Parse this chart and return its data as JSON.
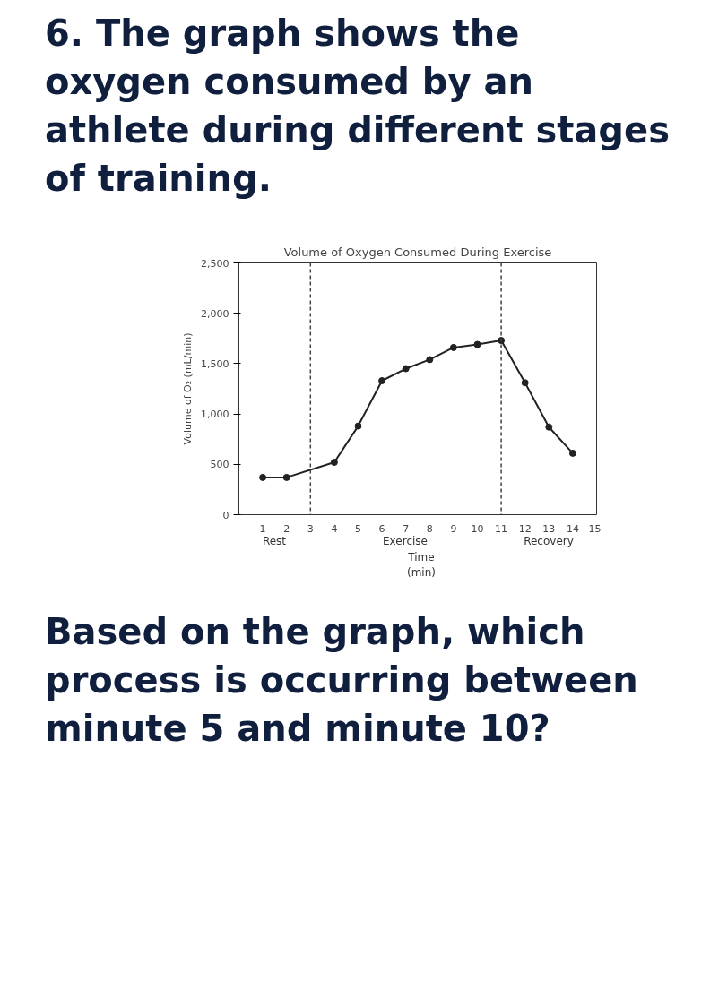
{
  "chart_data": {
    "type": "line",
    "title": "Volume of Oxygen Consumed During Exercise",
    "xlabel": "Time\n(min)",
    "ylabel": "Volume of O₂ (mL/min)",
    "x": [
      1,
      2,
      4,
      5,
      6,
      7,
      8,
      9,
      10,
      11,
      12,
      13,
      14
    ],
    "series": [
      {
        "color": "#222222",
        "values": [
          370,
          370,
          520,
          880,
          1330,
          1450,
          1540,
          1660,
          1690,
          1730,
          1310,
          870,
          610
        ]
      }
    ],
    "xlim": [
      0,
      15
    ],
    "xticks": [
      1,
      2,
      3,
      4,
      5,
      6,
      7,
      8,
      9,
      10,
      11,
      12,
      13,
      14,
      15
    ],
    "ylim": [
      0,
      2500
    ],
    "yticks": [
      0,
      500,
      {
        "value": 1000,
        "label": "1,000"
      },
      {
        "value": 1500,
        "label": "1,500"
      },
      {
        "value": 2000,
        "label": "2,000"
      },
      {
        "value": 2500,
        "label": "2,500"
      }
    ],
    "ref_lines": [
      {
        "axis": "x",
        "value": 3,
        "color": "#444444",
        "line_style": "dashed"
      },
      {
        "axis": "x",
        "value": 11,
        "color": "#444444",
        "line_style": "dashed"
      }
    ],
    "annotations": [
      "6. The graph shows the oxygen consumed by an athlete during different stages of training.",
      "Rest",
      "Exercise",
      "Recovery",
      "Based on the graph, which process is occurring between minute 5 and minute 10?"
    ],
    "marker": "circle",
    "line_style": "solid",
    "grid": false
  }
}
